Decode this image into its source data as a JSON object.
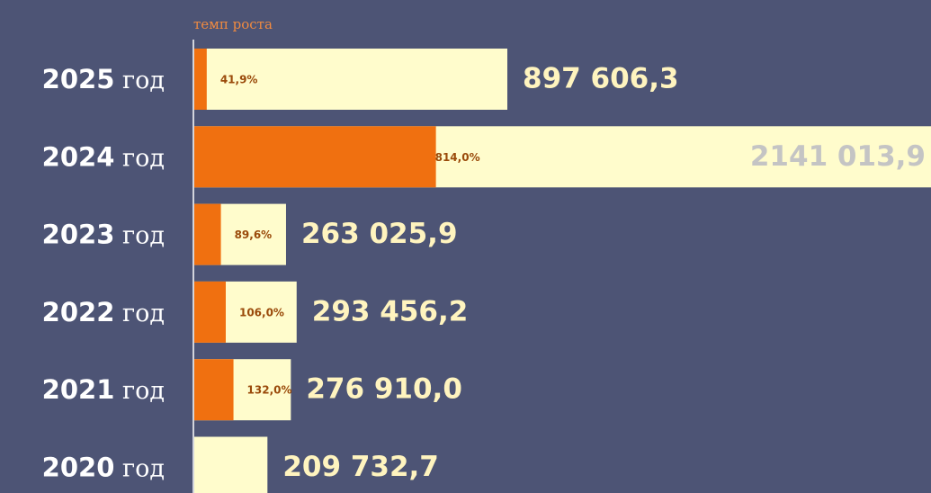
{
  "chart_data": {
    "type": "bar",
    "subtitle": "темп роста",
    "categories": [
      "2025 год",
      "2024 год",
      "2023 год",
      "2022 год",
      "2021 год",
      "2020 год"
    ],
    "values": [
      897606.3,
      2141013.9,
      263025.9,
      293456.2,
      276910.0,
      209732.7
    ],
    "value_labels": [
      "897 606,3",
      "2141 013,9",
      "263 025,9",
      "293 456,2",
      "276 910,0",
      "209 732,7"
    ],
    "color": "#fffccc",
    "label_color": "#fff4bf",
    "overflow_label_color": "#c4c4c4",
    "growth": {
      "values": [
        41.9,
        814.0,
        89.6,
        106.0,
        132.0,
        null
      ],
      "value_labels": [
        "41,9%",
        "814,0%",
        "89,6%",
        "106,0%",
        "132,0%",
        null
      ],
      "color": "#f07010"
    }
  }
}
